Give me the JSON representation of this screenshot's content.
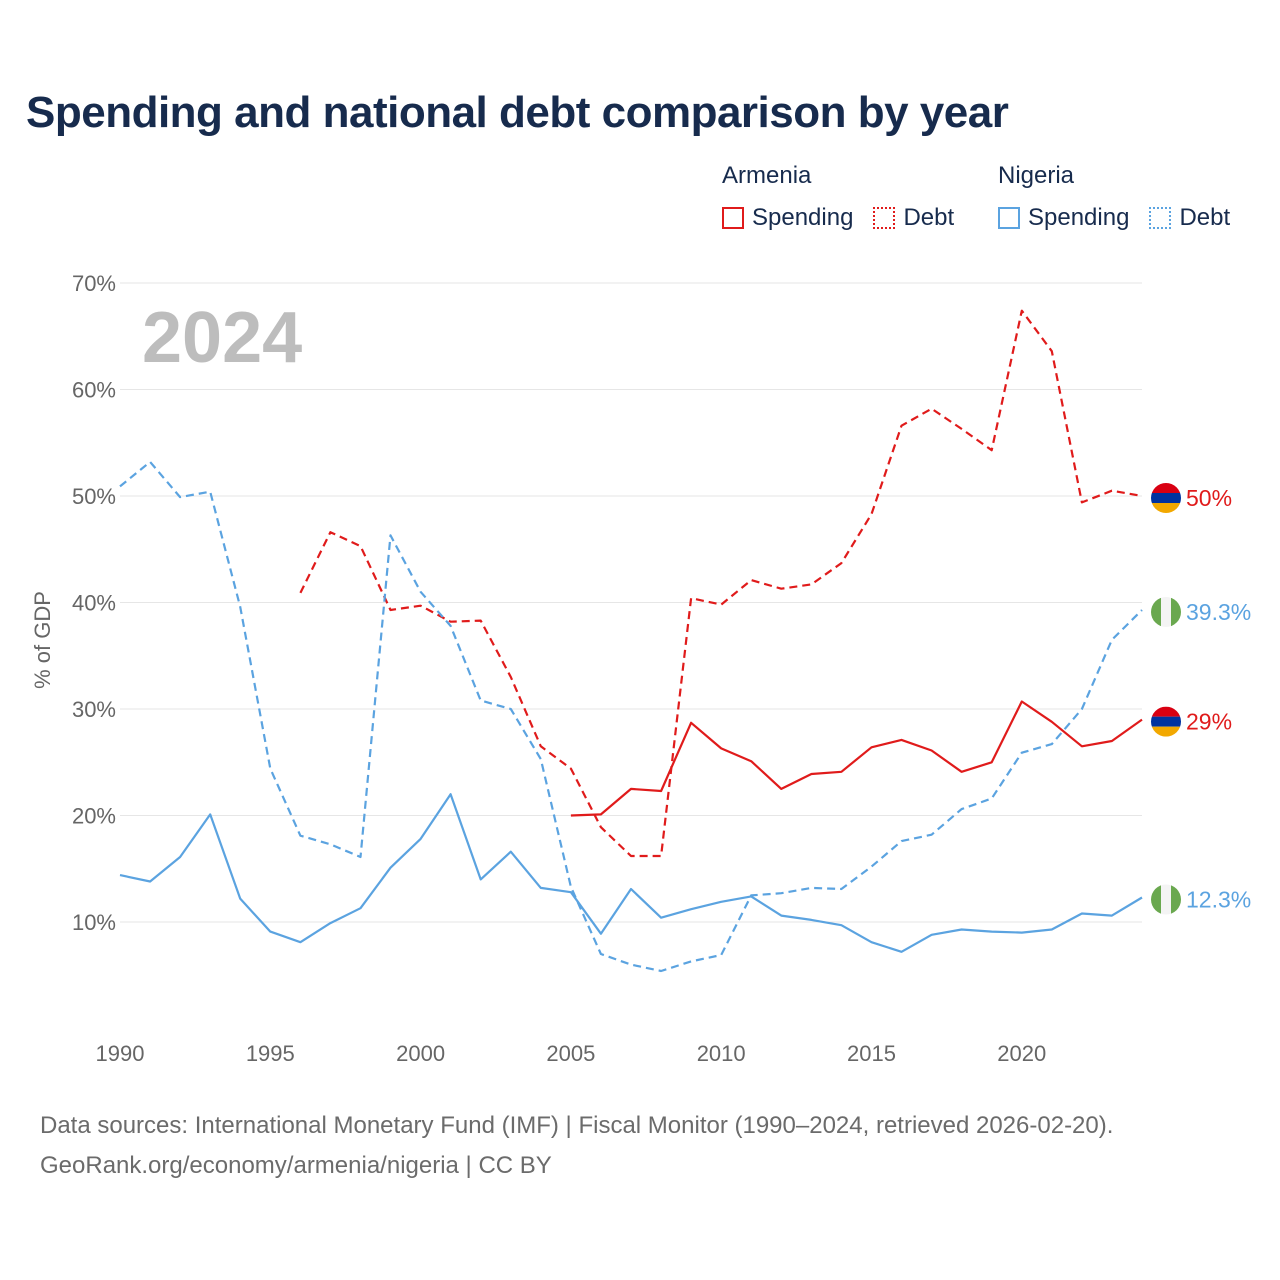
{
  "title": "Spending and national debt comparison by year",
  "legend": {
    "armenia": {
      "label": "Armenia",
      "spending": "Spending",
      "debt": "Debt"
    },
    "nigeria": {
      "label": "Nigeria",
      "spending": "Spending",
      "debt": "Debt"
    }
  },
  "colors": {
    "armenia": "#e01b1b",
    "nigeria": "#5ba3e0"
  },
  "icons": {
    "armenia_flag": "armenia-flag-icon",
    "nigeria_flag": "nigeria-flag-icon"
  },
  "chart_data": {
    "type": "line",
    "ylabel": "% of GDP",
    "xlabel": "",
    "year_display": "2024",
    "ylim": [
      0,
      70
    ],
    "xlim": [
      1990,
      2024
    ],
    "yticks": [
      10,
      20,
      30,
      40,
      50,
      60,
      70
    ],
    "ytick_labels": [
      "10%",
      "20%",
      "30%",
      "40%",
      "50%",
      "60%",
      "70%"
    ],
    "xticks": [
      1990,
      1995,
      2000,
      2005,
      2010,
      2015,
      2020
    ],
    "xtick_labels": [
      "1990",
      "1995",
      "2000",
      "2005",
      "2010",
      "2015",
      "2020"
    ],
    "series": [
      {
        "name": "Armenia Spending",
        "country": "armenia",
        "style": "solid",
        "x": [
          2005,
          2006,
          2007,
          2008,
          2009,
          2010,
          2011,
          2012,
          2013,
          2014,
          2015,
          2016,
          2017,
          2018,
          2019,
          2020,
          2021,
          2022,
          2023,
          2024
        ],
        "y": [
          20.0,
          20.1,
          22.5,
          22.3,
          28.7,
          26.3,
          25.1,
          22.5,
          23.9,
          24.1,
          26.4,
          27.1,
          26.1,
          24.1,
          25.0,
          30.7,
          28.8,
          26.5,
          27.0,
          29.0
        ],
        "end_label": "29%"
      },
      {
        "name": "Armenia Debt",
        "country": "armenia",
        "style": "dashed",
        "x": [
          1996,
          1997,
          1998,
          1999,
          2000,
          2001,
          2002,
          2003,
          2004,
          2005,
          2006,
          2007,
          2008,
          2009,
          2010,
          2011,
          2012,
          2013,
          2014,
          2015,
          2016,
          2017,
          2018,
          2019,
          2020,
          2021,
          2022,
          2023,
          2024
        ],
        "y": [
          40.9,
          46.6,
          45.3,
          39.3,
          39.7,
          38.2,
          38.3,
          33.0,
          26.5,
          24.4,
          18.9,
          16.2,
          16.2,
          40.4,
          39.8,
          42.1,
          41.3,
          41.7,
          43.7,
          48.3,
          56.6,
          58.2,
          56.3,
          54.3,
          67.4,
          63.6,
          49.4,
          50.5,
          50.0
        ],
        "end_label": "50%"
      },
      {
        "name": "Nigeria Spending",
        "country": "nigeria",
        "style": "solid",
        "x": [
          1990,
          1991,
          1992,
          1993,
          1994,
          1995,
          1996,
          1997,
          1998,
          1999,
          2000,
          2001,
          2002,
          2003,
          2004,
          2005,
          2006,
          2007,
          2008,
          2009,
          2010,
          2011,
          2012,
          2013,
          2014,
          2015,
          2016,
          2017,
          2018,
          2019,
          2020,
          2021,
          2022,
          2023,
          2024
        ],
        "y": [
          14.4,
          13.8,
          16.1,
          20.1,
          12.2,
          9.1,
          8.1,
          9.9,
          11.3,
          15.1,
          17.8,
          22.0,
          14.0,
          16.6,
          13.2,
          12.8,
          8.9,
          13.1,
          10.4,
          11.2,
          11.9,
          12.4,
          10.6,
          10.2,
          9.7,
          8.1,
          7.2,
          8.8,
          9.3,
          9.1,
          9.0,
          9.3,
          10.8,
          10.6,
          12.3
        ],
        "end_label": "12.3%"
      },
      {
        "name": "Nigeria Debt",
        "country": "nigeria",
        "style": "dashed",
        "x": [
          1990,
          1991,
          1992,
          1993,
          1994,
          1995,
          1996,
          1997,
          1998,
          1999,
          2000,
          2001,
          2002,
          2003,
          2004,
          2005,
          2006,
          2007,
          2008,
          2009,
          2010,
          2011,
          2012,
          2013,
          2014,
          2015,
          2016,
          2017,
          2018,
          2019,
          2020,
          2021,
          2022,
          2023,
          2024
        ],
        "y": [
          50.9,
          53.2,
          49.9,
          50.4,
          39.6,
          24.4,
          18.1,
          17.3,
          16.1,
          46.3,
          41.0,
          37.8,
          30.8,
          30.0,
          25.3,
          13.3,
          7.0,
          6.0,
          5.4,
          6.3,
          6.9,
          12.5,
          12.7,
          13.2,
          13.1,
          15.2,
          17.6,
          18.2,
          20.6,
          21.6,
          25.9,
          26.7,
          30.0,
          36.5,
          39.3
        ],
        "end_label": "39.3%"
      }
    ]
  },
  "footer": {
    "line1": "Data sources: International Monetary Fund (IMF) | Fiscal Monitor (1990–2024, retrieved 2026-02-20).",
    "line2": "GeoRank.org/economy/armenia/nigeria | CC BY"
  }
}
